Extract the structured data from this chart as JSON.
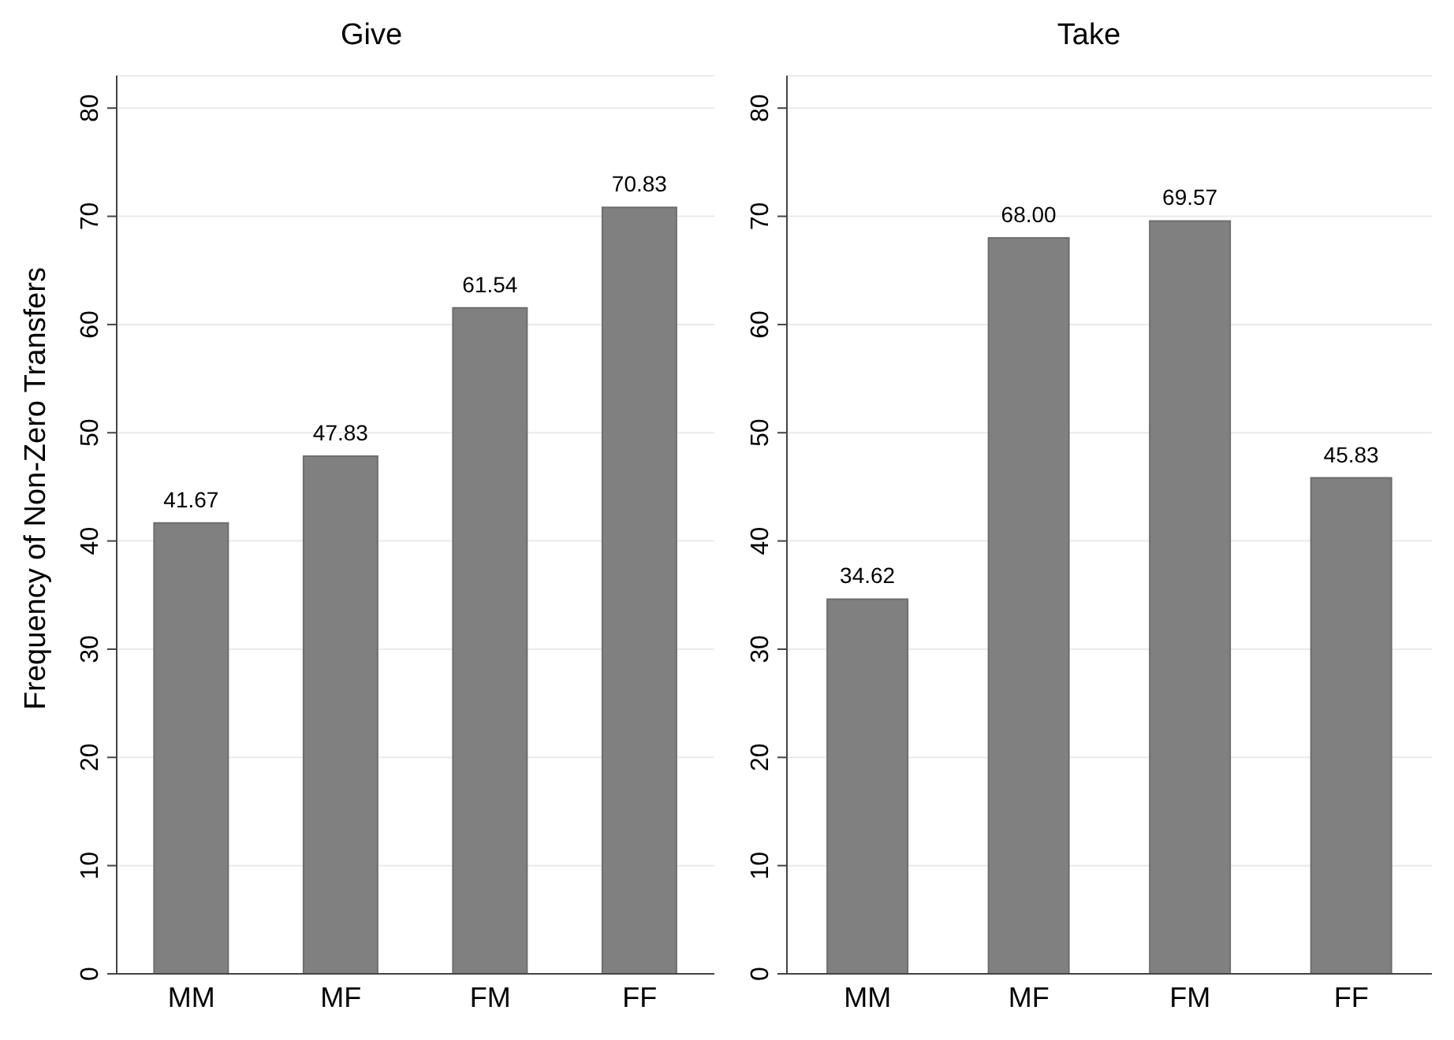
{
  "chart_data": [
    {
      "type": "bar",
      "title": "Give",
      "ylabel": "Frequency of Non-Zero Transfers",
      "categories": [
        "MM",
        "MF",
        "FM",
        "FF"
      ],
      "values": [
        41.67,
        47.83,
        61.54,
        70.83
      ],
      "value_labels": [
        "41.67",
        "47.83",
        "61.54",
        "70.83"
      ],
      "color": "#808080",
      "ylim": [
        0,
        83
      ],
      "yticks": [
        0,
        10,
        20,
        30,
        40,
        50,
        60,
        70,
        80
      ],
      "grid": "y"
    },
    {
      "type": "bar",
      "title": "Take",
      "categories": [
        "MM",
        "MF",
        "FM",
        "FF"
      ],
      "values": [
        34.62,
        68.0,
        69.57,
        45.83
      ],
      "value_labels": [
        "34.62",
        "68.00",
        "69.57",
        "45.83"
      ],
      "color": "#808080",
      "ylim": [
        0,
        83
      ],
      "yticks": [
        0,
        10,
        20,
        30,
        40,
        50,
        60,
        70,
        80
      ],
      "grid": "y"
    }
  ]
}
